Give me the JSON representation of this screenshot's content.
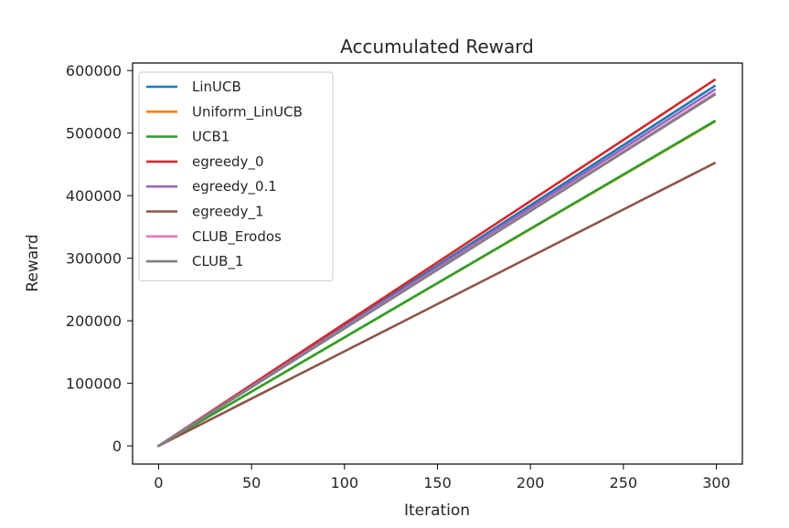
{
  "chart_data": {
    "type": "line",
    "title": "Accumulated Reward",
    "xlabel": "Iteration",
    "ylabel": "Reward",
    "xlim": [
      -14,
      314
    ],
    "ylim": [
      -29000,
      612000
    ],
    "xticks": [
      0,
      50,
      100,
      150,
      200,
      250,
      300
    ],
    "yticks": [
      0,
      100000,
      200000,
      300000,
      400000,
      500000,
      600000
    ],
    "grid": false,
    "legend_position": "top-left",
    "series": [
      {
        "name": "LinUCB",
        "color": "#1f77b4",
        "x": [
          0,
          299
        ],
        "values": [
          0,
          575000
        ]
      },
      {
        "name": "Uniform_LinUCB",
        "color": "#ff7f0e",
        "x": [
          0,
          299
        ],
        "values": [
          0,
          518000
        ]
      },
      {
        "name": "UCB1",
        "color": "#2ca02c",
        "x": [
          0,
          299
        ],
        "values": [
          0,
          519000
        ]
      },
      {
        "name": "egreedy_0",
        "color": "#d62728",
        "x": [
          0,
          299
        ],
        "values": [
          0,
          585000
        ]
      },
      {
        "name": "egreedy_0.1",
        "color": "#9467bd",
        "x": [
          0,
          299
        ],
        "values": [
          0,
          569000
        ]
      },
      {
        "name": "egreedy_1",
        "color": "#8c564b",
        "x": [
          0,
          299
        ],
        "values": [
          0,
          452000
        ]
      },
      {
        "name": "CLUB_Erodos",
        "color": "#e377c2",
        "x": [
          0,
          299
        ],
        "values": [
          0,
          563000
        ]
      },
      {
        "name": "CLUB_1",
        "color": "#7f7f7f",
        "x": [
          0,
          299
        ],
        "values": [
          0,
          561000
        ]
      }
    ]
  }
}
